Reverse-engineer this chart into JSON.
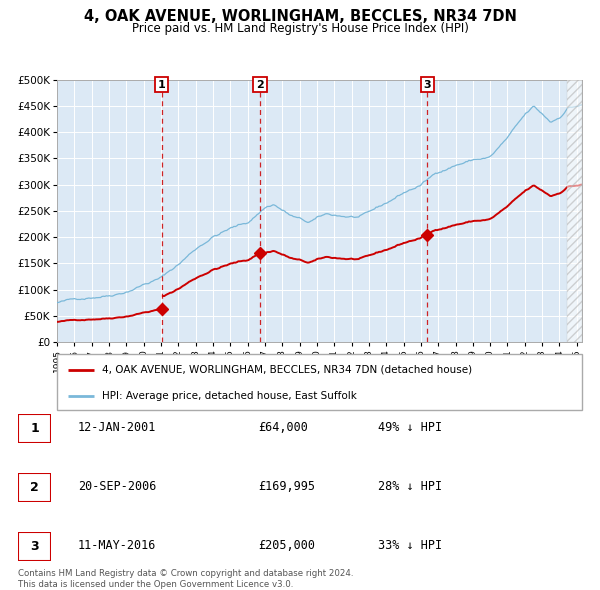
{
  "title": "4, OAK AVENUE, WORLINGHAM, BECCLES, NR34 7DN",
  "subtitle": "Price paid vs. HM Land Registry's House Price Index (HPI)",
  "plot_bg_color": "#dce9f5",
  "ylim": [
    0,
    500000
  ],
  "yticks": [
    0,
    50000,
    100000,
    150000,
    200000,
    250000,
    300000,
    350000,
    400000,
    450000,
    500000
  ],
  "ytick_labels": [
    "£0",
    "£50K",
    "£100K",
    "£150K",
    "£200K",
    "£250K",
    "£300K",
    "£350K",
    "£400K",
    "£450K",
    "£500K"
  ],
  "xlim_start": 1995.0,
  "xlim_end": 2025.3,
  "red_line_color": "#cc0000",
  "blue_line_color": "#7ab8d9",
  "sale_markers": [
    {
      "year": 2001.04,
      "price": 64000,
      "label": "1"
    },
    {
      "year": 2006.72,
      "price": 169995,
      "label": "2"
    },
    {
      "year": 2016.36,
      "price": 205000,
      "label": "3"
    }
  ],
  "vline_years": [
    2001.04,
    2006.72,
    2016.36
  ],
  "legend_red": "4, OAK AVENUE, WORLINGHAM, BECCLES, NR34 7DN (detached house)",
  "legend_blue": "HPI: Average price, detached house, East Suffolk",
  "table_data": [
    {
      "num": "1",
      "date": "12-JAN-2001",
      "price": "£64,000",
      "hpi": "49% ↓ HPI"
    },
    {
      "num": "2",
      "date": "20-SEP-2006",
      "price": "£169,995",
      "hpi": "28% ↓ HPI"
    },
    {
      "num": "3",
      "date": "11-MAY-2016",
      "price": "£205,000",
      "hpi": "33% ↓ HPI"
    }
  ],
  "footer": "Contains HM Land Registry data © Crown copyright and database right 2024.\nThis data is licensed under the Open Government Licence v3.0.",
  "hatch_x_start": 2024.42
}
